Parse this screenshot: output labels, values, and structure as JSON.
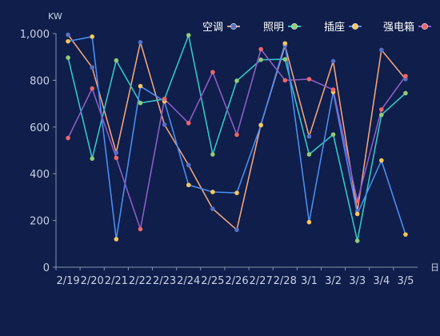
{
  "chart_data": {
    "type": "line",
    "y_unit": "KW",
    "x_unit": "日",
    "categories": [
      "2/19",
      "2/20",
      "2/21",
      "2/22",
      "2/23",
      "2/24",
      "2/25",
      "2/26",
      "2/27",
      "2/28",
      "3/1",
      "3/2",
      "3/3",
      "3/4",
      "3/5"
    ],
    "ylim": [
      0,
      1000
    ],
    "yticks": [
      "0",
      "200",
      "400",
      "600",
      "800",
      "1,000"
    ],
    "grid": false,
    "legend_position": "top-right",
    "series": [
      {
        "name": "空调",
        "color": "#5470c6",
        "values": [
          995,
          855,
          490,
          963,
          610,
          437,
          250,
          160,
          610,
          948,
          560,
          882,
          240,
          930,
          805
        ]
      },
      {
        "name": "照明",
        "color": "#91cc75",
        "values": [
          897,
          465,
          885,
          703,
          720,
          993,
          483,
          798,
          888,
          890,
          483,
          568,
          113,
          652,
          745
        ]
      },
      {
        "name": "插座",
        "color": "#fac858",
        "values": [
          967,
          987,
          120,
          775,
          710,
          352,
          322,
          318,
          608,
          958,
          193,
          750,
          228,
          457,
          140
        ]
      },
      {
        "name": "强电箱",
        "color": "#ee6666",
        "values": [
          553,
          765,
          468,
          163,
          720,
          617,
          835,
          567,
          933,
          800,
          805,
          760,
          283,
          675,
          818
        ]
      }
    ],
    "line_colors": [
      "#f0a37a",
      "#34c6c6",
      "#4b8cf0",
      "#8c5cc8"
    ]
  }
}
